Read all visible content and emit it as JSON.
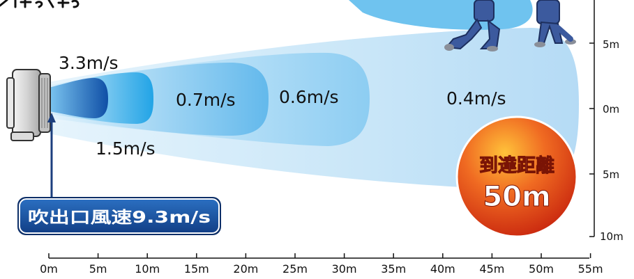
{
  "zones": [
    {
      "speed": "3.3m/s"
    },
    {
      "speed": "1.5m/s"
    },
    {
      "speed": "0.7m/s"
    },
    {
      "speed": "0.6m/s"
    },
    {
      "speed": "0.4m/s"
    }
  ],
  "outlet_label": "吹出口風速9.3m/s",
  "reach": {
    "title": "到達距離",
    "distance": "50m"
  },
  "x_axis": {
    "ticks": [
      "0m",
      "5m",
      "10m",
      "15m",
      "20m",
      "25m",
      "30m",
      "35m",
      "40m",
      "45m",
      "50m",
      "55m"
    ]
  },
  "y_axis": {
    "ticks": [
      "5m",
      "0m",
      "5m",
      "10m"
    ]
  },
  "colors": {
    "outer_zone": "#cfe9fa",
    "core_zone": "#1a5db0",
    "badge": "#1c57a8",
    "burst": "#e8401a",
    "worker_uniform": "#3c5a9e"
  }
}
